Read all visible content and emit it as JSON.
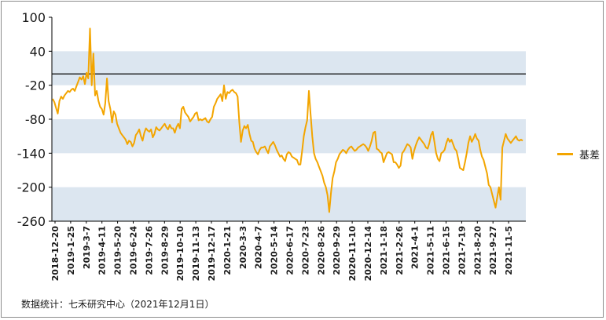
{
  "chart_data": {
    "type": "line",
    "y_ticks": [
      100,
      40,
      -20,
      -80,
      -140,
      -200,
      -260
    ],
    "ylim": [
      -260,
      100
    ],
    "x_ticks": [
      "2018-12-20",
      "2019-1-25",
      "2019-3-7",
      "2019-4-11",
      "2019-5-20",
      "2019-6-24",
      "2019-7-26",
      "2019-8-29",
      "2019-10-10",
      "2019-11-13",
      "2019-12-17",
      "2020-1-21",
      "2020-3-3",
      "2020-4-7",
      "2020-5-14",
      "2020-6-17",
      "2020-7-23",
      "2020-8-26",
      "2020-9-29",
      "2020-11-10",
      "2020-12-14",
      "2021-1-18",
      "2021-2-26",
      "2021-4-1",
      "2021-5-11",
      "2021-6-15",
      "2021-7-19",
      "2021-8-20",
      "2021-9-27",
      "2021-11-5"
    ],
    "shaded_bands": [
      [
        -20,
        40
      ],
      [
        -140,
        -80
      ],
      [
        -260,
        -200
      ]
    ],
    "reference_line": 0,
    "colors": {
      "series": "#f3a500",
      "band": "#dce6f0",
      "reference": "#000000"
    },
    "series": [
      {
        "name": "基差",
        "values": [
          -44,
          -50,
          -60,
          -70,
          -48,
          -40,
          -44,
          -38,
          -34,
          -30,
          -32,
          -28,
          -26,
          -30,
          -22,
          -14,
          -6,
          -10,
          -4,
          -18,
          2,
          -8,
          80,
          -20,
          36,
          -38,
          -30,
          -48,
          -58,
          -62,
          -72,
          -52,
          -8,
          -48,
          -62,
          -86,
          -66,
          -72,
          -88,
          -96,
          -104,
          -108,
          -112,
          -116,
          -124,
          -118,
          -120,
          -128,
          -122,
          -108,
          -104,
          -98,
          -110,
          -118,
          -104,
          -96,
          -100,
          -102,
          -98,
          -112,
          -106,
          -94,
          -98,
          -100,
          -96,
          -92,
          -88,
          -94,
          -98,
          -90,
          -96,
          -96,
          -104,
          -94,
          -88,
          -96,
          -62,
          -58,
          -68,
          -72,
          -76,
          -84,
          -80,
          -76,
          -70,
          -68,
          -82,
          -80,
          -82,
          -80,
          -78,
          -84,
          -86,
          -80,
          -76,
          -58,
          -52,
          -44,
          -40,
          -36,
          -48,
          -20,
          -44,
          -32,
          -34,
          -30,
          -28,
          -32,
          -34,
          -40,
          -86,
          -120,
          -100,
          -92,
          -96,
          -90,
          -106,
          -118,
          -120,
          -132,
          -138,
          -142,
          -134,
          -130,
          -130,
          -128,
          -134,
          -140,
          -128,
          -124,
          -120,
          -126,
          -134,
          -140,
          -146,
          -144,
          -150,
          -154,
          -142,
          -138,
          -140,
          -146,
          -148,
          -150,
          -152,
          -160,
          -160,
          -136,
          -110,
          -94,
          -82,
          -30,
          -70,
          -110,
          -140,
          -150,
          -156,
          -164,
          -172,
          -180,
          -192,
          -200,
          -214,
          -244,
          -210,
          -184,
          -172,
          -156,
          -150,
          -142,
          -138,
          -134,
          -136,
          -140,
          -134,
          -130,
          -128,
          -132,
          -136,
          -134,
          -130,
          -128,
          -126,
          -124,
          -126,
          -130,
          -136,
          -128,
          -118,
          -104,
          -102,
          -132,
          -134,
          -138,
          -140,
          -156,
          -148,
          -140,
          -138,
          -140,
          -142,
          -156,
          -156,
          -160,
          -166,
          -162,
          -140,
          -136,
          -130,
          -124,
          -126,
          -130,
          -150,
          -136,
          -126,
          -118,
          -112,
          -116,
          -120,
          -124,
          -130,
          -132,
          -122,
          -108,
          -102,
          -120,
          -140,
          -150,
          -154,
          -140,
          -138,
          -134,
          -122,
          -114,
          -120,
          -116,
          -124,
          -132,
          -136,
          -150,
          -166,
          -168,
          -170,
          -156,
          -140,
          -122,
          -110,
          -120,
          -114,
          -106,
          -114,
          -118,
          -134,
          -146,
          -152,
          -164,
          -176,
          -196,
          -200,
          -212,
          -224,
          -236,
          -218,
          -200,
          -222,
          -130,
          -118,
          -106,
          -114,
          -118,
          -122,
          -118,
          -114,
          -110,
          -116,
          -118,
          -116,
          -118
        ]
      }
    ]
  },
  "legend": {
    "label": "基差"
  },
  "footer": {
    "source": "数据统计：七禾研究中心（2021年12月1日）"
  }
}
